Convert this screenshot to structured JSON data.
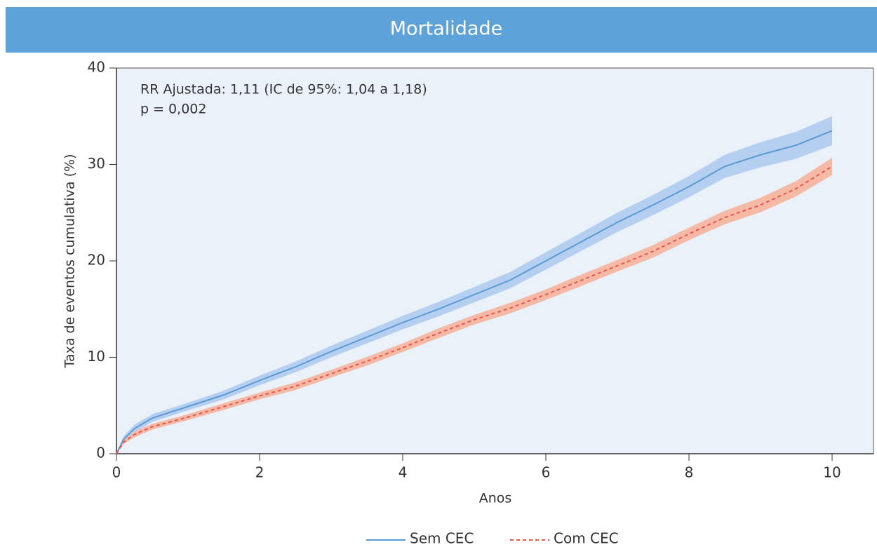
{
  "chart_data": {
    "type": "line",
    "title": "Mortalidade",
    "xlabel": "Anos",
    "ylabel": "Taxa de eventos cumulativa (%)",
    "annotations": [
      "RR Ajustada: 1,11 (IC de 95%: 1,04 a 1,18)",
      "p = 0,002"
    ],
    "x": [
      0,
      0.1,
      0.25,
      0.5,
      1,
      1.5,
      2,
      2.5,
      3,
      3.5,
      4,
      4.5,
      5,
      5.5,
      6,
      6.5,
      7,
      7.5,
      8,
      8.5,
      9,
      9.5,
      10
    ],
    "series": [
      {
        "name": "Sem CEC",
        "color": "#5b9bd5",
        "band_color": "#b4cff0",
        "dash": false,
        "values": [
          0,
          1.5,
          2.6,
          3.7,
          4.9,
          6.1,
          7.6,
          9.0,
          10.6,
          12.1,
          13.6,
          15.0,
          16.5,
          18.0,
          20.0,
          22.0,
          24.0,
          25.8,
          27.7,
          29.8,
          31.0,
          32.0,
          33.5
        ],
        "lower": [
          0,
          1.2,
          2.2,
          3.3,
          4.5,
          5.65,
          7.1,
          8.45,
          10.0,
          11.45,
          12.9,
          14.25,
          15.7,
          17.15,
          19.1,
          21.05,
          23.0,
          24.75,
          26.6,
          28.6,
          29.7,
          30.6,
          32.0
        ],
        "upper": [
          0,
          1.8,
          3.0,
          4.1,
          5.3,
          6.55,
          8.1,
          9.55,
          11.2,
          12.75,
          14.3,
          15.75,
          17.3,
          18.85,
          20.9,
          22.95,
          25.0,
          26.85,
          28.8,
          31.0,
          32.3,
          33.4,
          35.0
        ]
      },
      {
        "name": "Com CEC",
        "color": "#e8554a",
        "band_color": "#f5b9a6",
        "dash": true,
        "values": [
          0,
          1.2,
          2.0,
          2.8,
          3.8,
          4.9,
          6.0,
          7.0,
          8.3,
          9.6,
          11.0,
          12.5,
          13.9,
          15.1,
          16.5,
          18.0,
          19.5,
          21.0,
          22.8,
          24.5,
          25.8,
          27.5,
          29.8
        ],
        "lower": [
          0,
          1.0,
          1.7,
          2.5,
          3.5,
          4.55,
          5.65,
          6.6,
          7.9,
          9.15,
          10.55,
          12.0,
          13.4,
          14.55,
          15.95,
          17.4,
          18.9,
          20.35,
          22.15,
          23.8,
          25.05,
          26.7,
          28.9
        ],
        "upper": [
          0,
          1.4,
          2.3,
          3.1,
          4.1,
          5.25,
          6.35,
          7.4,
          8.7,
          10.05,
          11.45,
          13.0,
          14.4,
          15.65,
          17.05,
          18.6,
          20.1,
          21.65,
          23.45,
          25.2,
          26.55,
          28.3,
          30.7
        ]
      }
    ],
    "xlim": [
      0,
      10
    ],
    "xticks": [
      0,
      2,
      4,
      6,
      8,
      10
    ],
    "ylim": [
      0,
      40
    ],
    "yticks": [
      0,
      10,
      20,
      30,
      40
    ],
    "grid": false
  }
}
